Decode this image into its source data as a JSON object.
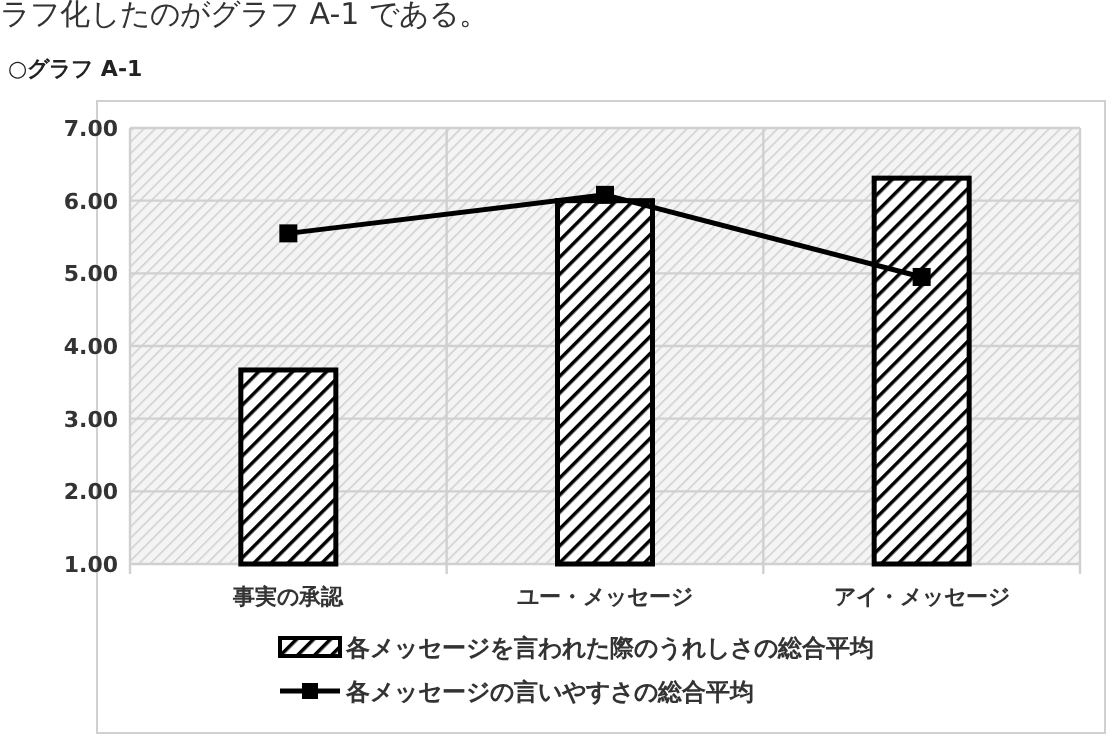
{
  "chart_data": {
    "type": "bar",
    "title": "○グラフ A-1",
    "annotations": [
      "ラフ化したのがグラフ A-1 である。"
    ],
    "categories": [
      "事実の承認",
      "ユー・メッセージ",
      "アイ・メッセージ"
    ],
    "series": [
      {
        "name": "各メッセージを言われた際のうれしさの総合平均",
        "color": "#000000",
        "values": [
          3.67,
          6.0,
          6.31
        ]
      },
      {
        "name": "各メッセージの言いやすさの総合平均",
        "type": "line",
        "color": "#000000",
        "marker": "square",
        "values": [
          5.55,
          6.08,
          4.95
        ]
      }
    ],
    "ylim": [
      1,
      7
    ],
    "yticks": [
      {
        "value": 1,
        "label": "1.00"
      },
      {
        "value": 2,
        "label": "2.00"
      },
      {
        "value": 3,
        "label": "3.00"
      },
      {
        "value": 4,
        "label": "4.00"
      },
      {
        "value": 5,
        "label": "5.00"
      },
      {
        "value": 6,
        "label": "6.00"
      },
      {
        "value": 7,
        "label": "7.00"
      }
    ],
    "grid": true,
    "legend": "bottom"
  }
}
